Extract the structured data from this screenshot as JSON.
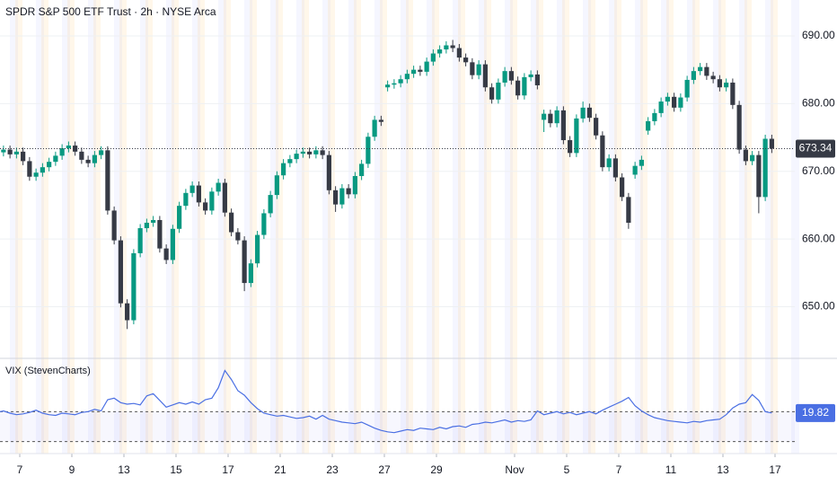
{
  "chart_data": [
    {
      "type": "candlestick",
      "title": "SPDR S&P 500 ETF Trust · 2h · NYSE Arca",
      "categories": [
        null,
        null,
        null,
        null,
        null,
        null,
        null,
        null,
        null,
        null,
        null,
        null,
        null,
        null,
        null,
        null,
        null,
        null,
        null,
        null,
        null,
        null,
        null,
        null,
        null,
        null,
        null,
        null,
        null,
        null,
        null,
        null,
        null,
        null,
        null,
        null,
        null,
        null,
        null,
        null,
        null,
        null,
        null,
        null,
        null,
        null,
        null,
        null,
        null,
        null,
        null,
        null,
        null,
        null,
        null,
        null,
        null,
        null,
        null,
        null,
        null,
        null,
        null,
        null,
        null,
        null,
        null,
        null,
        null,
        null,
        null,
        null,
        null,
        null,
        null,
        null,
        null,
        null,
        null,
        null,
        null,
        null,
        null,
        null,
        null,
        null,
        null,
        null,
        null,
        null,
        null,
        null,
        null,
        null,
        null,
        null,
        null,
        null,
        null,
        null,
        null,
        null,
        null,
        null,
        null,
        null,
        null,
        null,
        null,
        null,
        null,
        null,
        null,
        null,
        null,
        null,
        null,
        null,
        null,
        null
      ],
      "open": [
        672.4,
        672.8,
        673.2,
        672.5,
        672.9,
        671.5,
        669.2,
        669.8,
        670.6,
        671.4,
        672.3,
        673.4,
        673.8,
        672.9,
        671.7,
        671.2,
        672.4,
        673.1,
        664.2,
        659.8,
        650.5,
        648.0,
        657.9,
        661.6,
        662.4,
        662.8,
        658.6,
        656.9,
        661.5,
        664.9,
        666.8,
        667.9,
        665.4,
        664.2,
        667.0,
        668.3,
        663.9,
        661.0,
        659.8,
        653.5,
        656.4,
        660.6,
        663.8,
        666.5,
        669.4,
        671.2,
        671.8,
        672.6,
        672.9,
        672.5,
        673.1,
        672.4,
        667.2,
        665.1,
        667.5,
        666.6,
        669.3,
        671.1,
        675.1,
        677.6,
        682.4,
        682.8,
        683.0,
        683.6,
        684.4,
        685.0,
        684.7,
        686.2,
        687.4,
        688.0,
        688.6,
        688.2,
        686.8,
        686.1,
        684.2,
        685.8,
        682.4,
        680.6,
        683.1,
        684.8,
        683.4,
        681.2,
        683.9,
        684.3,
        677.6,
        678.5,
        677.1,
        679.0,
        674.6,
        672.7,
        677.8,
        679.4,
        677.9,
        675.3,
        670.6,
        671.9,
        669.1,
        666.2,
        669.5,
        670.8,
        676.0,
        677.4,
        678.6,
        680.3,
        681.0,
        679.4,
        680.9,
        683.5,
        684.8,
        685.4,
        684.1,
        683.6,
        682.4,
        683.1,
        679.8,
        673.2,
        671.5,
        672.4,
        666.2,
        674.8
      ],
      "high": [
        673.4,
        673.8,
        673.8,
        673.5,
        673.5,
        672.1,
        670.4,
        671.2,
        672.0,
        672.9,
        674.0,
        674.4,
        674.4,
        673.5,
        672.3,
        673.0,
        673.7,
        673.7,
        664.8,
        660.4,
        651.1,
        658.5,
        662.2,
        663.0,
        663.4,
        663.4,
        659.2,
        662.1,
        665.5,
        667.4,
        668.5,
        668.5,
        666.0,
        667.6,
        668.9,
        668.9,
        664.5,
        661.6,
        660.4,
        657.0,
        661.2,
        664.4,
        667.1,
        670.0,
        671.8,
        672.4,
        673.2,
        673.5,
        673.5,
        673.7,
        673.7,
        673.0,
        667.8,
        668.1,
        668.1,
        669.9,
        671.7,
        675.7,
        678.2,
        678.2,
        683.4,
        683.6,
        684.2,
        685.0,
        685.6,
        685.6,
        686.8,
        688.0,
        688.6,
        689.2,
        689.4,
        688.8,
        687.4,
        686.7,
        686.4,
        686.4,
        683.0,
        683.7,
        685.4,
        685.4,
        684.0,
        684.5,
        684.9,
        684.9,
        679.1,
        679.1,
        679.6,
        679.6,
        675.2,
        678.4,
        680.3,
        680.0,
        678.5,
        675.9,
        672.5,
        672.5,
        669.7,
        666.8,
        671.4,
        672.3,
        678.0,
        679.2,
        680.9,
        681.6,
        681.6,
        681.5,
        684.1,
        685.4,
        686.0,
        686.0,
        684.7,
        684.2,
        683.7,
        683.7,
        680.4,
        673.8,
        673.0,
        673.0,
        675.4,
        675.4
      ],
      "low": [
        671.8,
        672.2,
        671.9,
        671.9,
        670.9,
        668.6,
        668.6,
        669.2,
        670.0,
        670.8,
        671.7,
        672.8,
        672.3,
        671.1,
        670.6,
        670.6,
        671.8,
        663.6,
        659.2,
        649.9,
        646.7,
        647.4,
        657.3,
        661.0,
        661.8,
        658.0,
        656.3,
        656.3,
        660.9,
        664.3,
        666.2,
        664.8,
        663.6,
        663.6,
        666.4,
        663.3,
        660.4,
        659.2,
        652.3,
        652.9,
        655.8,
        660.0,
        663.2,
        665.9,
        668.8,
        670.6,
        671.2,
        672.0,
        671.9,
        671.9,
        671.8,
        666.6,
        664.0,
        664.5,
        666.0,
        666.0,
        668.7,
        670.5,
        674.5,
        676.7,
        681.8,
        682.2,
        682.4,
        683.0,
        683.8,
        684.1,
        684.1,
        685.6,
        686.8,
        687.4,
        687.6,
        686.2,
        685.5,
        683.6,
        683.6,
        681.8,
        680.0,
        680.0,
        682.5,
        682.8,
        680.6,
        680.6,
        683.3,
        682.1,
        675.8,
        676.5,
        676.5,
        674.0,
        672.1,
        672.1,
        677.2,
        677.3,
        674.7,
        670.0,
        670.0,
        668.5,
        665.6,
        661.5,
        668.9,
        670.2,
        675.4,
        676.8,
        678.0,
        679.7,
        678.8,
        678.8,
        680.3,
        682.9,
        684.2,
        683.5,
        683.0,
        681.8,
        681.8,
        679.2,
        672.6,
        670.9,
        670.9,
        663.8,
        665.6,
        672.7
      ],
      "close": [
        672.8,
        673.2,
        672.5,
        672.9,
        671.5,
        669.2,
        669.8,
        670.6,
        671.4,
        672.3,
        673.4,
        673.8,
        672.9,
        671.7,
        671.2,
        672.4,
        673.1,
        664.2,
        659.8,
        650.5,
        648.0,
        657.9,
        661.6,
        662.4,
        662.8,
        658.6,
        656.9,
        661.5,
        664.9,
        666.8,
        667.9,
        665.4,
        664.2,
        667.0,
        668.3,
        663.9,
        661.0,
        659.8,
        653.5,
        656.4,
        660.6,
        663.8,
        666.5,
        669.4,
        671.2,
        671.8,
        672.6,
        672.9,
        672.5,
        673.1,
        672.4,
        667.2,
        665.1,
        667.5,
        666.6,
        669.3,
        671.1,
        675.1,
        677.6,
        677.3,
        682.8,
        683.0,
        683.6,
        684.4,
        685.0,
        684.7,
        686.2,
        687.4,
        688.0,
        688.6,
        688.2,
        686.8,
        686.1,
        684.2,
        685.8,
        682.4,
        680.6,
        683.1,
        684.8,
        683.4,
        681.2,
        683.9,
        684.3,
        682.7,
        678.5,
        677.1,
        679.0,
        674.6,
        672.7,
        677.8,
        679.4,
        677.9,
        675.3,
        670.6,
        671.9,
        669.1,
        666.2,
        662.4,
        670.8,
        671.7,
        677.4,
        678.6,
        680.3,
        681.0,
        679.4,
        680.9,
        683.5,
        684.8,
        685.4,
        684.1,
        683.6,
        682.4,
        683.1,
        679.8,
        673.2,
        671.5,
        672.4,
        666.2,
        674.8,
        673.34
      ],
      "up_color": "#089981",
      "down_color": "#363a45",
      "ylim": [
        642.5,
        695.3
      ],
      "yticks": [
        {
          "value": 650,
          "label": "650.00"
        },
        {
          "value": 660,
          "label": "660.00"
        },
        {
          "value": 670,
          "label": "670.00"
        },
        {
          "value": 680,
          "label": "680.00"
        },
        {
          "value": 690,
          "label": "690.00"
        }
      ],
      "grid": true,
      "xticks": [
        {
          "value": 4,
          "label": "7"
        },
        {
          "value": 12,
          "label": "9"
        },
        {
          "value": 20,
          "label": "13"
        },
        {
          "value": 28,
          "label": "15"
        },
        {
          "value": 36,
          "label": "17"
        },
        {
          "value": 44,
          "label": "21"
        },
        {
          "value": 52,
          "label": "23"
        },
        {
          "value": 60,
          "label": "27"
        },
        {
          "value": 68,
          "label": "29"
        },
        {
          "value": 80,
          "label": "Nov"
        },
        {
          "value": 88,
          "label": "5"
        },
        {
          "value": 96,
          "label": "7"
        },
        {
          "value": 104,
          "label": "11"
        },
        {
          "value": 112,
          "label": "13"
        },
        {
          "value": 120,
          "label": "17"
        }
      ]
    },
    {
      "type": "line",
      "title": "VIX (StevenCharts)",
      "series": [
        {
          "color": "#4a6fe3",
          "values": [
            19.9,
            20.1,
            19.8,
            19.6,
            19.7,
            19.9,
            20.2,
            19.8,
            19.6,
            19.5,
            19.8,
            19.7,
            19.6,
            19.9,
            20.0,
            20.3,
            20.1,
            21.6,
            21.8,
            21.2,
            21.0,
            21.1,
            20.9,
            22.1,
            22.4,
            21.5,
            20.6,
            20.9,
            21.2,
            21.0,
            21.3,
            21.0,
            21.6,
            21.8,
            23.2,
            25.5,
            24.3,
            22.8,
            22.2,
            21.2,
            20.4,
            19.8,
            19.6,
            19.4,
            19.5,
            19.3,
            19.1,
            19.2,
            19.4,
            19.0,
            19.5,
            19.0,
            18.8,
            18.6,
            18.5,
            18.4,
            18.6,
            18.2,
            17.8,
            17.5,
            17.3,
            17.2,
            17.4,
            17.6,
            17.5,
            17.8,
            17.7,
            17.6,
            17.9,
            17.7,
            18.0,
            18.1,
            17.9,
            18.3,
            18.4,
            18.6,
            18.5,
            18.7,
            18.9,
            18.6,
            18.8,
            18.7,
            18.9,
            20.1,
            19.6,
            19.8,
            20.0,
            19.7,
            19.9,
            19.6,
            19.8,
            20.0,
            19.7,
            20.2,
            20.6,
            21.0,
            21.4,
            21.9,
            20.8,
            20.1,
            19.6,
            19.2,
            19.0,
            18.8,
            18.7,
            18.6,
            18.5,
            18.7,
            18.6,
            18.8,
            18.9,
            19.0,
            19.6,
            20.5,
            21.0,
            21.2,
            22.3,
            21.5,
            20.0,
            19.82
          ]
        }
      ],
      "ylim": [
        15,
        27
      ],
      "levels": [
        20,
        16
      ]
    }
  ]
}
